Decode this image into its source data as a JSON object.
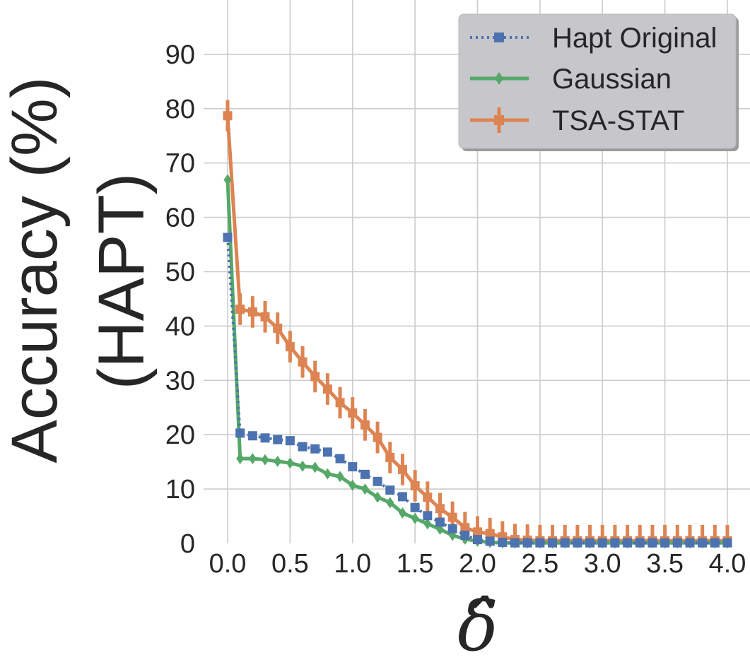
{
  "chart_data": {
    "type": "line",
    "title": "",
    "xlabel": "δ̂",
    "ylabel_lines": [
      "Accuracy (%)",
      "(HAPT)"
    ],
    "xlim": [
      0,
      4
    ],
    "ylim": [
      0,
      100
    ],
    "xticks": [
      "0.0",
      "0.5",
      "1.0",
      "1.5",
      "2.0",
      "2.5",
      "3.0",
      "3.5",
      "4.0"
    ],
    "yticks": [
      "0",
      "10",
      "20",
      "30",
      "40",
      "50",
      "60",
      "70",
      "80",
      "90"
    ],
    "grid": true,
    "legend_position": "top-right",
    "x": [
      0.0,
      0.1,
      0.2,
      0.3,
      0.4,
      0.5,
      0.6,
      0.7,
      0.8,
      0.9,
      1.0,
      1.1,
      1.2,
      1.3,
      1.4,
      1.5,
      1.6,
      1.7,
      1.8,
      1.9,
      2.0,
      2.1,
      2.2,
      2.3,
      2.4,
      2.5,
      2.6,
      2.7,
      2.8,
      2.9,
      3.0,
      3.1,
      3.2,
      3.3,
      3.4,
      3.5,
      3.6,
      3.7,
      3.8,
      3.9,
      4.0
    ],
    "series": [
      {
        "name": "Hapt Original",
        "color": "#4c72b0",
        "linestyle": "dotted",
        "marker": "square",
        "values": [
          56.3,
          20.3,
          19.8,
          19.4,
          19.1,
          18.9,
          17.8,
          17.4,
          16.8,
          15.6,
          14.1,
          12.7,
          11.4,
          9.8,
          8.6,
          6.6,
          5.1,
          3.9,
          2.7,
          1.5,
          0.7,
          0.4,
          0.2,
          0.1,
          0.1,
          0.1,
          0.1,
          0.1,
          0.1,
          0.1,
          0.1,
          0.1,
          0.1,
          0.1,
          0.1,
          0.1,
          0.1,
          0.1,
          0.1,
          0.1,
          0.1
        ]
      },
      {
        "name": "Gaussian",
        "color": "#55a868",
        "linestyle": "solid",
        "marker": "diamond",
        "values": [
          66.9,
          15.6,
          15.6,
          15.4,
          15.1,
          14.8,
          14.2,
          14.0,
          12.8,
          12.3,
          10.7,
          10.0,
          8.5,
          7.5,
          5.6,
          4.6,
          3.6,
          2.6,
          1.5,
          0.8,
          0.4,
          0.2,
          0.1,
          0.1,
          0.1,
          0.1,
          0.1,
          0.1,
          0.1,
          0.1,
          0.1,
          0.1,
          0.1,
          0.1,
          0.1,
          0.1,
          0.1,
          0.1,
          0.1,
          0.1,
          0.1
        ]
      },
      {
        "name": "TSA-STAT",
        "color": "#dd8452",
        "linestyle": "solid",
        "marker": "plus-errorbar",
        "values": [
          78.7,
          43.1,
          42.6,
          41.7,
          39.6,
          36.2,
          33.4,
          30.7,
          28.4,
          25.9,
          24.0,
          21.8,
          19.5,
          15.8,
          13.6,
          10.6,
          8.5,
          6.4,
          4.8,
          2.9,
          2.1,
          1.8,
          1.2,
          0.7,
          0.6,
          0.5,
          0.5,
          0.5,
          0.5,
          0.5,
          0.5,
          0.5,
          0.5,
          0.5,
          0.5,
          0.5,
          0.5,
          0.5,
          0.5,
          0.5,
          0.5
        ],
        "error": [
          2.9,
          2.9,
          2.9,
          2.9,
          2.9,
          2.9,
          2.9,
          2.9,
          2.9,
          2.9,
          2.9,
          2.9,
          2.9,
          2.9,
          2.9,
          2.9,
          2.9,
          2.9,
          2.9,
          2.9,
          2.9,
          2.9,
          2.9,
          2.9,
          2.9,
          2.9,
          2.9,
          2.9,
          2.9,
          2.9,
          2.9,
          2.9,
          2.9,
          2.9,
          2.9,
          2.9,
          2.9,
          2.9,
          2.9,
          2.9,
          2.9
        ]
      }
    ]
  }
}
